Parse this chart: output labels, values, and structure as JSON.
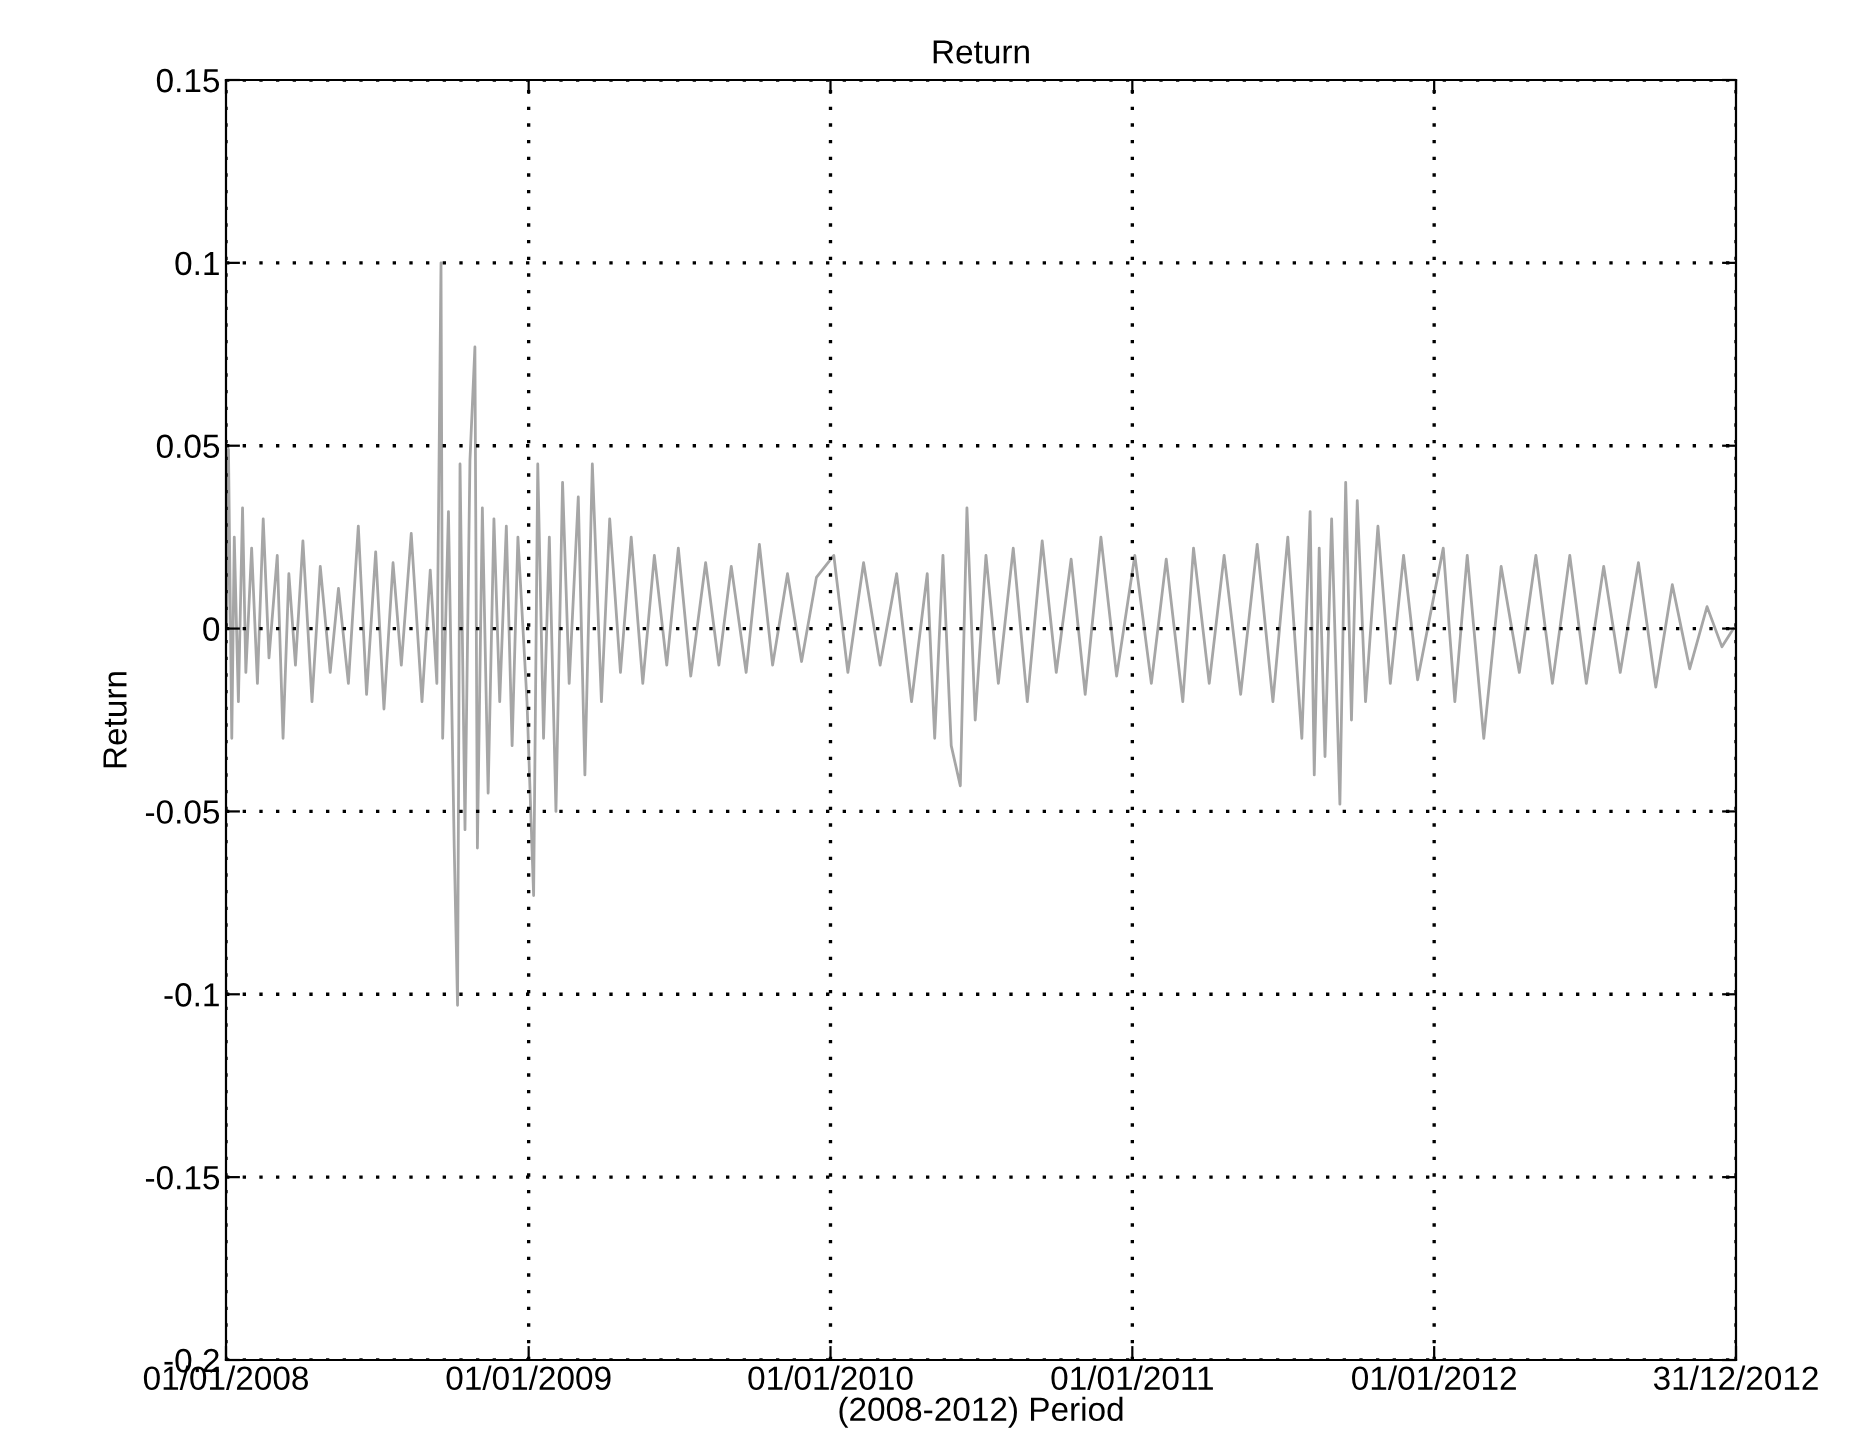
{
  "chart_data": {
    "type": "line",
    "title": "Return",
    "xlabel": "(2008-2012) Period",
    "ylabel": "Return",
    "xlim": [
      "2008-01-01",
      "2012-12-31"
    ],
    "xticks": [
      {
        "value": "2008-01-01",
        "label": "01/01/2008"
      },
      {
        "value": "2009-01-01",
        "label": "01/01/2009"
      },
      {
        "value": "2010-01-01",
        "label": "01/01/2010"
      },
      {
        "value": "2011-01-01",
        "label": "01/01/2011"
      },
      {
        "value": "2012-01-01",
        "label": "01/01/2012"
      },
      {
        "value": "2012-12-31",
        "label": "31/12/2012"
      }
    ],
    "ylim": [
      -0.2,
      0.15
    ],
    "yticks": [
      -0.2,
      -0.15,
      -0.1,
      -0.05,
      0,
      0.05,
      0.1,
      0.15
    ],
    "grid": true,
    "marker": "none",
    "line_style": "solid",
    "series": [
      {
        "color": "#a6a6a6",
        "x": [
          "2008-01-02",
          "2008-01-04",
          "2008-01-08",
          "2008-01-11",
          "2008-01-16",
          "2008-01-21",
          "2008-01-25",
          "2008-02-01",
          "2008-02-08",
          "2008-02-15",
          "2008-02-22",
          "2008-03-03",
          "2008-03-10",
          "2008-03-17",
          "2008-03-25",
          "2008-04-03",
          "2008-04-14",
          "2008-04-24",
          "2008-05-06",
          "2008-05-16",
          "2008-05-28",
          "2008-06-09",
          "2008-06-19",
          "2008-06-30",
          "2008-07-10",
          "2008-07-21",
          "2008-07-31",
          "2008-08-12",
          "2008-08-25",
          "2008-09-04",
          "2008-09-12",
          "2008-09-17",
          "2008-09-19",
          "2008-09-26",
          "2008-10-03",
          "2008-10-07",
          "2008-10-10",
          "2008-10-16",
          "2008-10-22",
          "2008-10-28",
          "2008-10-31",
          "2008-11-06",
          "2008-11-13",
          "2008-11-20",
          "2008-11-27",
          "2008-12-05",
          "2008-12-12",
          "2008-12-19",
          "2008-12-30",
          "2009-01-07",
          "2009-01-12",
          "2009-01-19",
          "2009-01-26",
          "2009-02-03",
          "2009-02-11",
          "2009-02-19",
          "2009-03-02",
          "2009-03-10",
          "2009-03-19",
          "2009-03-30",
          "2009-04-09",
          "2009-04-22",
          "2009-05-05",
          "2009-05-19",
          "2009-06-02",
          "2009-06-17",
          "2009-07-01",
          "2009-07-16",
          "2009-08-03",
          "2009-08-19",
          "2009-09-03",
          "2009-09-21",
          "2009-10-07",
          "2009-10-23",
          "2009-11-10",
          "2009-11-27",
          "2009-12-15",
          "2010-01-05",
          "2010-01-22",
          "2010-02-10",
          "2010-03-02",
          "2010-03-22",
          "2010-04-09",
          "2010-04-28",
          "2010-05-07",
          "2010-05-17",
          "2010-05-27",
          "2010-06-07",
          "2010-06-15",
          "2010-06-25",
          "2010-07-08",
          "2010-07-23",
          "2010-08-10",
          "2010-08-27",
          "2010-09-14",
          "2010-10-01",
          "2010-10-19",
          "2010-11-05",
          "2010-11-24",
          "2010-12-13",
          "2011-01-04",
          "2011-01-24",
          "2011-02-11",
          "2011-03-03",
          "2011-03-16",
          "2011-04-04",
          "2011-04-22",
          "2011-05-12",
          "2011-06-01",
          "2011-06-20",
          "2011-07-08",
          "2011-07-25",
          "2011-08-04",
          "2011-08-09",
          "2011-08-15",
          "2011-08-22",
          "2011-08-30",
          "2011-09-09",
          "2011-09-16",
          "2011-09-23",
          "2011-09-30",
          "2011-10-10",
          "2011-10-25",
          "2011-11-09",
          "2011-11-25",
          "2011-12-12",
          "2012-01-12",
          "2012-01-26",
          "2012-02-10",
          "2012-03-01",
          "2012-03-22",
          "2012-04-13",
          "2012-05-03",
          "2012-05-23",
          "2012-06-13",
          "2012-07-03",
          "2012-07-24",
          "2012-08-13",
          "2012-09-04",
          "2012-09-25",
          "2012-10-15",
          "2012-11-05",
          "2012-11-26",
          "2012-12-14",
          "2012-12-28"
        ],
        "values": [
          0.0,
          0.049,
          -0.03,
          0.025,
          -0.02,
          0.033,
          -0.012,
          0.022,
          -0.015,
          0.03,
          -0.008,
          0.02,
          -0.03,
          0.015,
          -0.01,
          0.024,
          -0.02,
          0.017,
          -0.012,
          0.011,
          -0.015,
          0.028,
          -0.018,
          0.021,
          -0.022,
          0.018,
          -0.01,
          0.026,
          -0.02,
          0.016,
          -0.015,
          0.1,
          -0.03,
          0.032,
          -0.06,
          -0.103,
          0.045,
          -0.055,
          0.046,
          0.077,
          -0.06,
          0.033,
          -0.045,
          0.03,
          -0.02,
          0.028,
          -0.032,
          0.025,
          -0.02,
          -0.073,
          0.045,
          -0.03,
          0.025,
          -0.05,
          0.04,
          -0.015,
          0.036,
          -0.04,
          0.045,
          -0.02,
          0.03,
          -0.012,
          0.025,
          -0.015,
          0.02,
          -0.01,
          0.022,
          -0.013,
          0.018,
          -0.01,
          0.017,
          -0.012,
          0.023,
          -0.01,
          0.015,
          -0.009,
          0.014,
          0.02,
          -0.012,
          0.018,
          -0.01,
          0.015,
          -0.02,
          0.015,
          -0.03,
          0.02,
          -0.032,
          -0.043,
          0.033,
          -0.025,
          0.02,
          -0.015,
          0.022,
          -0.02,
          0.024,
          -0.012,
          0.019,
          -0.018,
          0.025,
          -0.013,
          0.02,
          -0.015,
          0.019,
          -0.02,
          0.022,
          -0.015,
          0.02,
          -0.018,
          0.023,
          -0.02,
          0.025,
          -0.03,
          0.032,
          -0.04,
          0.022,
          -0.035,
          0.03,
          -0.048,
          0.04,
          -0.025,
          0.035,
          -0.02,
          0.028,
          -0.015,
          0.02,
          -0.014,
          0.022,
          -0.02,
          0.02,
          -0.03,
          0.017,
          -0.012,
          0.02,
          -0.015,
          0.02,
          -0.015,
          0.017,
          -0.012,
          0.018,
          -0.016,
          0.012,
          -0.011,
          0.006,
          -0.005,
          0.0
        ]
      }
    ]
  }
}
